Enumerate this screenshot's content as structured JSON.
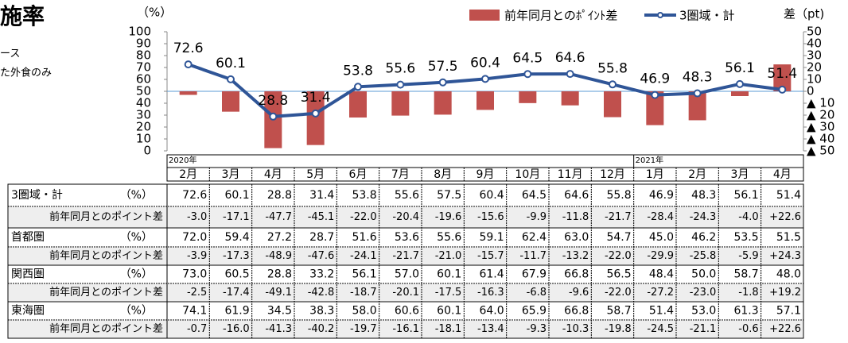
{
  "chart_data": {
    "type": "bar_line",
    "title": "施率",
    "notes": [
      "ース",
      "た外食のみ"
    ],
    "ylabel": "（%）",
    "y2label": "差（pt)",
    "categories": [
      "2月",
      "3月",
      "4月",
      "5月",
      "6月",
      "7月",
      "8月",
      "9月",
      "10月",
      "11月",
      "12月",
      "1月",
      "2月",
      "3月",
      "4月"
    ],
    "year_labels": [
      "2020年",
      null,
      null,
      null,
      null,
      null,
      null,
      null,
      null,
      null,
      null,
      "2021年",
      null,
      null,
      null
    ],
    "series": [
      {
        "name": "前年同月とのﾎﾟｲﾝﾄ差",
        "kind": "bar",
        "axis": "y2",
        "color": "#c0504d",
        "values": [
          -3.0,
          -17.1,
          -47.7,
          -45.1,
          -22.0,
          -20.4,
          -19.6,
          -15.6,
          -9.9,
          -11.8,
          -21.7,
          -28.4,
          -24.3,
          -4.0,
          22.6
        ]
      },
      {
        "name": "3圏域・計",
        "kind": "line",
        "color": "#2f5597",
        "data_labels": true,
        "values": [
          72.6,
          60.1,
          28.8,
          31.4,
          53.8,
          55.6,
          57.5,
          60.4,
          64.5,
          64.6,
          55.8,
          46.9,
          48.3,
          56.1,
          51.4
        ]
      }
    ],
    "ylim": [
      0,
      100
    ],
    "yticks": [
      0,
      10,
      20,
      30,
      40,
      50,
      60,
      70,
      80,
      90,
      100
    ],
    "y2lim": [
      -50,
      50
    ],
    "y2ticks": [
      {
        "value": -50,
        "label": "▲ 50"
      },
      {
        "value": -40,
        "label": "▲ 40"
      },
      {
        "value": -30,
        "label": "▲ 30"
      },
      {
        "value": -20,
        "label": "▲ 20"
      },
      {
        "value": -10,
        "label": "▲ 10"
      },
      0,
      10,
      20,
      30,
      40,
      50
    ],
    "grid": false,
    "legend": "top-right"
  },
  "table": {
    "rows": [
      {
        "label": "3圏域・計",
        "unit": "（%）",
        "cells": [
          "72.6",
          "60.1",
          "28.8",
          "31.4",
          "53.8",
          "55.6",
          "57.5",
          "60.4",
          "64.5",
          "64.6",
          "55.8",
          "46.9",
          "48.3",
          "56.1",
          "51.4"
        ]
      },
      {
        "label": "前年同月とのポイント差",
        "cells": [
          "-3.0",
          "-17.1",
          "-47.7",
          "-45.1",
          "-22.0",
          "-20.4",
          "-19.6",
          "-15.6",
          "-9.9",
          "-11.8",
          "-21.7",
          "-28.4",
          "-24.3",
          "-4.0",
          "+22.6"
        ]
      },
      {
        "label": "首都圏",
        "unit": "（%）",
        "cells": [
          "72.0",
          "59.4",
          "27.2",
          "28.7",
          "51.6",
          "53.6",
          "55.6",
          "59.1",
          "62.4",
          "63.0",
          "54.7",
          "45.0",
          "46.2",
          "53.5",
          "51.5"
        ]
      },
      {
        "label": "前年同月とのポイント差",
        "cells": [
          "-3.9",
          "-17.3",
          "-48.9",
          "-47.6",
          "-24.1",
          "-21.7",
          "-21.0",
          "-15.7",
          "-11.7",
          "-13.2",
          "-22.0",
          "-29.9",
          "-25.8",
          "-5.9",
          "+24.3"
        ]
      },
      {
        "label": "関西圏",
        "unit": "（%）",
        "cells": [
          "73.0",
          "60.5",
          "28.8",
          "33.2",
          "56.1",
          "57.0",
          "60.1",
          "61.4",
          "67.9",
          "66.8",
          "56.5",
          "48.4",
          "50.0",
          "58.7",
          "48.0"
        ]
      },
      {
        "label": "前年同月とのポイント差",
        "cells": [
          "-2.5",
          "-17.4",
          "-49.1",
          "-42.8",
          "-18.7",
          "-20.1",
          "-17.5",
          "-16.3",
          "-6.8",
          "-9.6",
          "-22.0",
          "-27.2",
          "-23.0",
          "-1.8",
          "+19.2"
        ]
      },
      {
        "label": "東海圏",
        "unit": "（%）",
        "cells": [
          "74.1",
          "61.9",
          "34.5",
          "38.3",
          "58.0",
          "60.6",
          "60.1",
          "64.0",
          "65.9",
          "66.8",
          "58.7",
          "51.4",
          "53.0",
          "61.3",
          "57.1"
        ]
      },
      {
        "label": "前年同月とのポイント差",
        "cells": [
          "-0.7",
          "-16.0",
          "-41.3",
          "-40.2",
          "-19.7",
          "-16.1",
          "-18.1",
          "-13.4",
          "-9.3",
          "-10.3",
          "-19.8",
          "-24.5",
          "-21.1",
          "-0.6",
          "+22.6"
        ]
      }
    ]
  }
}
